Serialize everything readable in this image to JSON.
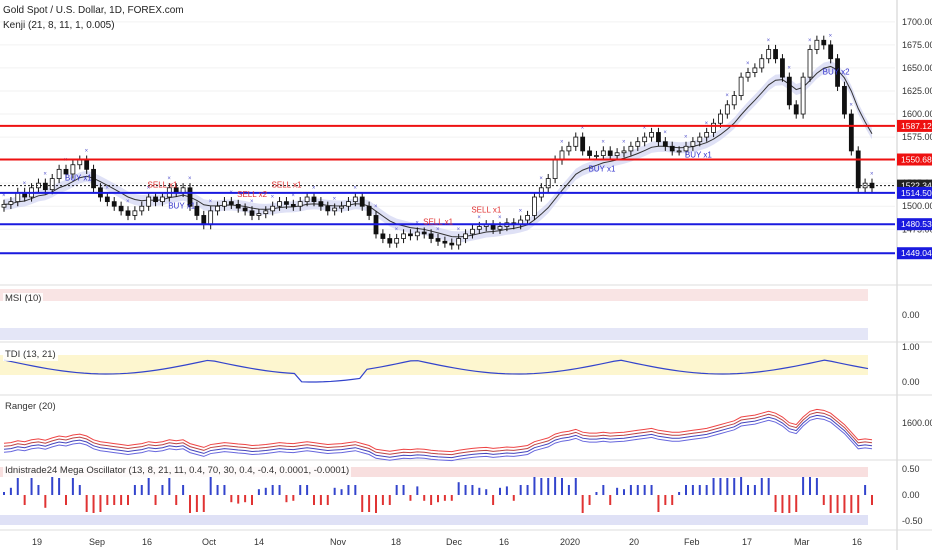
{
  "header": {
    "title": "Gold Spot / U.S. Dollar, 1D, FOREX.com",
    "indicator": "Kenji (21, 8, 11, 1, 0.005)"
  },
  "colors": {
    "up": "#ffffff",
    "down": "#111111",
    "red": "#ee1111",
    "blue": "#1111dd",
    "band_fill": "#c9cdf0",
    "band_fill_red": "#f3c9c9",
    "support": "#1a1adf"
  },
  "chart_data": [
    {
      "type": "candlestick",
      "x": [
        "19",
        "Sep",
        "16",
        "Oct",
        "14",
        "Nov",
        "18",
        "Dec",
        "16",
        "2020",
        "20",
        "Feb",
        "17",
        "Mar",
        "16"
      ],
      "ylim": [
        1420,
        1715
      ],
      "yticks": [
        "1700.00",
        "1675.00",
        "1650.00",
        "1625.00",
        "1600.00",
        "1575.00",
        "1550.00",
        "1525.00",
        "1500.00",
        "1475.00",
        "1450.00"
      ],
      "closes": [
        1502,
        1505,
        1515,
        1510,
        1520,
        1525,
        1518,
        1530,
        1540,
        1535,
        1545,
        1550,
        1540,
        1520,
        1510,
        1505,
        1500,
        1495,
        1490,
        1495,
        1500,
        1510,
        1505,
        1510,
        1520,
        1515,
        1520,
        1500,
        1490,
        1480,
        1495,
        1500,
        1505,
        1502,
        1498,
        1495,
        1490,
        1492,
        1495,
        1500,
        1505,
        1502,
        1500,
        1505,
        1510,
        1505,
        1500,
        1495,
        1498,
        1500,
        1505,
        1510,
        1500,
        1490,
        1470,
        1465,
        1460,
        1465,
        1470,
        1468,
        1472,
        1470,
        1465,
        1462,
        1460,
        1458,
        1465,
        1470,
        1475,
        1478,
        1480,
        1475,
        1478,
        1482,
        1480,
        1485,
        1490,
        1510,
        1520,
        1530,
        1550,
        1560,
        1565,
        1575,
        1560,
        1555,
        1555,
        1560,
        1555,
        1558,
        1560,
        1565,
        1570,
        1575,
        1580,
        1570,
        1565,
        1560,
        1560,
        1565,
        1570,
        1575,
        1580,
        1590,
        1600,
        1610,
        1620,
        1640,
        1645,
        1650,
        1660,
        1670,
        1660,
        1640,
        1610,
        1600,
        1640,
        1670,
        1680,
        1675,
        1660,
        1630,
        1600,
        1560,
        1520,
        1525,
        1520
      ],
      "levels": [
        {
          "value": 1587.12,
          "label": "1587.12",
          "color": "#ee1111"
        },
        {
          "value": 1550.68,
          "label": "1550.68",
          "color": "#ee1111"
        },
        {
          "value": 1522.34,
          "label": "1522.34",
          "color": "#111111"
        },
        {
          "value": 1514.5,
          "label": "1514.50",
          "color": "#1a1adf"
        },
        {
          "value": 1480.53,
          "label": "1480.53",
          "color": "#1a1adf"
        },
        {
          "value": 1449.04,
          "label": "1449.04",
          "color": "#1a1adf"
        }
      ],
      "signals": [
        {
          "text": "SELL x1",
          "i": 22
        },
        {
          "text": "SELL x2",
          "i": 35
        },
        {
          "text": "SELL x1",
          "i": 40
        },
        {
          "text": "SELL x1",
          "i": 62
        },
        {
          "text": "SELL x1",
          "i": 69
        },
        {
          "text": "BUY x1",
          "i": 10
        },
        {
          "text": "BUY x1",
          "i": 25
        },
        {
          "text": "BUY x1",
          "i": 86
        },
        {
          "text": "BUY x1",
          "i": 100
        },
        {
          "text": "BUY x2",
          "i": 120
        }
      ]
    },
    {
      "type": "line",
      "title": "MSI (10)",
      "yticks": [
        "0.00"
      ]
    },
    {
      "type": "line",
      "title": "TDI (13, 21)",
      "yticks": [
        "1.00",
        "0.00"
      ]
    },
    {
      "type": "line",
      "title": "Ranger (20)",
      "yticks": [
        "1600.00"
      ]
    },
    {
      "type": "bar",
      "title": "Idnistrade24 Mega Oscillator (13, 8, 21, 11, 0.4, 70, 30, 0.4, -0.4, 0.0001, -0.0001)",
      "yticks": [
        "0.50",
        "0.00",
        "-0.50"
      ]
    }
  ]
}
